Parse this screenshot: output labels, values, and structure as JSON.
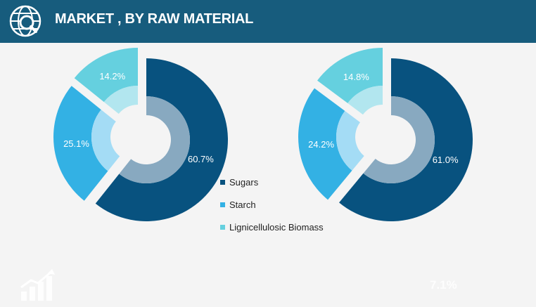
{
  "header": {
    "title": "MARKET , BY RAW MATERIAL",
    "icon": "globe-search-icon",
    "background": "#175c7d"
  },
  "chart_data": [
    {
      "type": "pie",
      "variant": "exploded-donut",
      "categories": [
        "Sugars",
        "Starch",
        "Lignicellulosic Biomass"
      ],
      "values": [
        60.7,
        25.1,
        14.2
      ],
      "value_labels": [
        "60.7%",
        "25.1%",
        "14.2%"
      ],
      "colors": [
        "#08527f",
        "#33b1e4",
        "#65d0df"
      ],
      "inner_colors": [
        "#88a9c0",
        "#a4dcf5",
        "#b2e6ef"
      ]
    },
    {
      "type": "pie",
      "variant": "exploded-donut",
      "categories": [
        "Sugars",
        "Starch",
        "Lignicellulosic Biomass"
      ],
      "values": [
        61.0,
        24.2,
        14.8
      ],
      "value_labels": [
        "61.0%",
        "24.2%",
        "14.8%"
      ],
      "colors": [
        "#08527f",
        "#33b1e4",
        "#65d0df"
      ],
      "inner_colors": [
        "#88a9c0",
        "#a4dcf5",
        "#b2e6ef"
      ]
    }
  ],
  "legend": {
    "placement": "bottom-center",
    "items": [
      {
        "label": "Sugars",
        "color": "#08527f"
      },
      {
        "label": "Starch",
        "color": "#33b1e4"
      },
      {
        "label": "Lignicellulosic Biomass",
        "color": "#65d0df"
      }
    ]
  },
  "footer": {
    "icon": "growth-chart-icon",
    "faint_value": "7.1%"
  }
}
